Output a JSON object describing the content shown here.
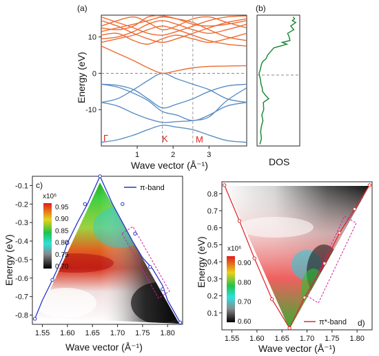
{
  "chart_data": [
    {
      "panel": "(a)",
      "type": "line",
      "xlabel": "Wave vector (Å⁻¹)",
      "ylabel": "Energy (eV)",
      "xlim": [
        0,
        4.05
      ],
      "ylim": [
        -20,
        16
      ],
      "xticks": [
        1,
        2,
        3
      ],
      "yticks": [
        -10,
        0,
        10
      ],
      "kpoints": [
        {
          "label": "Γ",
          "x": 0
        },
        {
          "label": "K",
          "x": 1.7
        },
        {
          "label": "M",
          "x": 2.55
        }
      ],
      "series": [
        {
          "group": "valence",
          "x": [
            0,
            0.45,
            0.9,
            1.3,
            1.7,
            2.1,
            2.55,
            3.0,
            3.5,
            4.05
          ],
          "values": [
            -3.0,
            -3.3,
            -4.5,
            -7.0,
            -9.5,
            -8.5,
            -7.0,
            -5.0,
            -3.5,
            -3.0
          ]
        },
        {
          "group": "valence",
          "x": [
            0,
            0.45,
            0.9,
            1.3,
            1.7,
            2.1,
            2.55,
            3.0,
            3.5,
            4.05
          ],
          "values": [
            -3.0,
            -3.8,
            -5.5,
            -7.5,
            -10.5,
            -11.5,
            -13.0,
            -11.5,
            -9.0,
            -8.0
          ]
        },
        {
          "group": "valence",
          "x": [
            0,
            0.45,
            0.9,
            1.3,
            1.7,
            2.1,
            2.55,
            3.0,
            3.5,
            4.05
          ],
          "values": [
            -8.0,
            -7.0,
            -4.5,
            -2.0,
            0,
            -1.5,
            -3.0,
            -4.5,
            -7.0,
            -8.0
          ]
        },
        {
          "group": "valence",
          "x": [
            0,
            0.45,
            0.9,
            1.3,
            1.7,
            2.1,
            2.55,
            3.0,
            3.5,
            4.05
          ],
          "values": [
            -8.0,
            -9.0,
            -11.0,
            -12.5,
            -13.5,
            -13.3,
            -13.0,
            -12.0,
            -7.5,
            -4.0
          ]
        },
        {
          "group": "valence",
          "x": [
            0,
            0.45,
            0.9,
            1.3,
            1.7,
            2.1,
            2.55,
            3.0,
            3.5,
            4.05
          ],
          "values": [
            -19.0,
            -18.3,
            -17.0,
            -15.5,
            -14.3,
            -14.8,
            -15.5,
            -17.0,
            -18.5,
            -19.0
          ]
        },
        {
          "group": "conduction",
          "x": [
            0,
            0.45,
            0.9,
            1.3,
            1.7,
            2.1,
            2.55,
            3.0,
            3.5,
            4.05
          ],
          "values": [
            7.5,
            5.5,
            3.5,
            1.5,
            0,
            0.7,
            1.5,
            1.9,
            2.0,
            2.1
          ]
        },
        {
          "group": "conduction",
          "x": [
            0,
            0.45,
            0.9,
            1.3,
            1.7,
            2.1,
            2.55,
            3.0,
            3.5,
            4.05
          ],
          "values": [
            14.5,
            13.0,
            11.0,
            9.5,
            8.5,
            9.5,
            11.0,
            12.5,
            14.0,
            15.0
          ]
        },
        {
          "group": "conduction",
          "x": [
            0,
            0.45,
            0.9,
            1.3,
            1.7,
            2.1,
            2.55,
            3.0,
            3.5,
            4.05
          ],
          "values": [
            11.5,
            12.5,
            13.5,
            14.5,
            15.5,
            15.0,
            14.0,
            12.0,
            10.0,
            9.0
          ]
        },
        {
          "group": "conduction",
          "x": [
            0,
            0.45,
            0.9,
            1.3,
            1.7,
            2.1,
            2.55,
            3.0,
            3.5,
            4.05
          ],
          "values": [
            8.5,
            9.5,
            10.5,
            12.0,
            13.0,
            12.0,
            10.5,
            9.0,
            8.0,
            7.5
          ]
        },
        {
          "group": "conduction",
          "x": [
            0,
            0.45,
            0.9,
            1.3,
            1.7,
            2.1,
            2.55,
            3.0,
            3.5,
            4.05
          ],
          "values": [
            15.5,
            14.0,
            12.5,
            11.0,
            10.5,
            11.5,
            13.0,
            14.5,
            15.5,
            15.8
          ]
        },
        {
          "group": "conduction",
          "x": [
            0,
            0.45,
            0.9,
            1.3,
            1.7,
            2.1,
            2.55,
            3.0,
            3.5,
            4.05
          ],
          "values": [
            9.5,
            10.0,
            11.5,
            13.5,
            14.5,
            13.5,
            12.0,
            11.0,
            12.0,
            13.5
          ]
        },
        {
          "group": "conduction",
          "x": [
            0,
            0.45,
            0.9,
            1.3,
            1.7,
            2.1,
            2.55,
            3.0,
            3.5,
            4.05
          ],
          "values": [
            13.0,
            14.5,
            15.5,
            14.0,
            12.0,
            13.0,
            15.0,
            15.5,
            14.0,
            12.5
          ]
        },
        {
          "group": "conduction",
          "x": [
            0,
            0.45,
            0.9,
            1.3,
            1.7,
            2.1,
            2.55,
            3.0,
            3.5,
            4.05
          ],
          "values": [
            10.5,
            11.0,
            9.0,
            8.0,
            9.5,
            10.5,
            9.5,
            8.5,
            9.5,
            11.0
          ]
        },
        {
          "group": "conduction",
          "x": [
            0,
            0.45,
            0.9,
            1.3,
            1.7,
            2.1,
            2.55,
            3.0,
            3.5,
            4.05
          ],
          "values": [
            12.5,
            12.0,
            13.0,
            15.5,
            15.8,
            15.0,
            13.5,
            13.0,
            13.5,
            14.5
          ]
        }
      ],
      "colors": {
        "valence": "#5b8ec6",
        "conduction": "#ee6a30"
      }
    },
    {
      "panel": "(b)",
      "type": "line",
      "xlabel": "DOS",
      "ylim": [
        -20,
        16
      ],
      "color": "#1e8a3c",
      "y": [
        -19.5,
        -18,
        -16,
        -14.5,
        -13,
        -11.5,
        -10,
        -8,
        -7,
        -6,
        -5,
        -4,
        -3,
        -2,
        -1,
        0,
        1,
        2,
        3,
        3.5,
        4,
        5,
        6,
        7,
        7.5,
        8,
        8.5,
        9,
        10,
        11,
        12,
        13,
        14,
        14.5,
        15,
        15.5
      ],
      "values": [
        0.02,
        0.06,
        0.04,
        0.06,
        0.1,
        0.07,
        0.12,
        0.11,
        0.25,
        0.16,
        0.09,
        0.08,
        0.05,
        0.04,
        0.02,
        0.0,
        0.03,
        0.05,
        0.08,
        0.12,
        0.18,
        0.22,
        0.3,
        0.38,
        0.55,
        0.72,
        0.6,
        0.8,
        0.78,
        0.74,
        0.9,
        0.82,
        0.95,
        0.86,
        0.92,
        0.88
      ]
    },
    {
      "panel": "c)",
      "type": "heatmap",
      "xlabel": "Wave vector (Å⁻¹)",
      "ylabel": "Energy (eV)",
      "xlim": [
        1.53,
        1.83
      ],
      "ylim": [
        -0.85,
        -0.05
      ],
      "xticks": [
        1.55,
        1.6,
        1.65,
        1.7,
        1.75,
        1.8
      ],
      "yticks": [
        -0.1,
        -0.2,
        -0.3,
        -0.4,
        -0.5,
        -0.6,
        -0.7,
        -0.8
      ],
      "colorbar": {
        "exponent": "x10⁶",
        "ticks": [
          0.95,
          0.9,
          0.85,
          0.8,
          0.75,
          0.7
        ]
      },
      "legend": "π-band",
      "band_color": "#2233cc",
      "band_x": [
        1.535,
        1.55,
        1.57,
        1.59,
        1.6,
        1.62,
        1.64,
        1.665,
        1.69,
        1.71,
        1.73,
        1.75,
        1.77,
        1.79,
        1.8,
        1.825
      ],
      "band_y": [
        -0.82,
        -0.72,
        -0.61,
        -0.49,
        -0.41,
        -0.3,
        -0.2,
        -0.05,
        -0.2,
        -0.3,
        -0.4,
        -0.49,
        -0.55,
        -0.64,
        -0.72,
        -0.84
      ],
      "markers": [
        {
          "x": 1.535,
          "y": -0.82
        },
        {
          "x": 1.57,
          "y": -0.61
        },
        {
          "x": 1.6,
          "y": -0.41
        },
        {
          "x": 1.635,
          "y": -0.2
        },
        {
          "x": 1.665,
          "y": -0.05
        },
        {
          "x": 1.71,
          "y": -0.2
        },
        {
          "x": 1.735,
          "y": -0.36
        },
        {
          "x": 1.765,
          "y": -0.54
        },
        {
          "x": 1.79,
          "y": -0.66
        },
        {
          "x": 1.825,
          "y": -0.84
        }
      ],
      "highlight_box": "dashed magenta box along right edge"
    },
    {
      "panel": "d)",
      "type": "heatmap",
      "xlabel": "Wave vector (Å⁻¹)",
      "ylabel": "Energy (eV)",
      "xlim": [
        1.53,
        1.83
      ],
      "ylim": [
        0.0,
        0.87
      ],
      "xticks": [
        1.55,
        1.6,
        1.65,
        1.7,
        1.75,
        1.8
      ],
      "yticks": [
        0.1,
        0.2,
        0.3,
        0.4,
        0.5,
        0.6,
        0.7,
        0.8
      ],
      "colorbar": {
        "exponent": "x10⁶",
        "ticks": [
          0.9,
          0.8,
          0.7,
          0.6
        ]
      },
      "legend": "π*-band",
      "band_color": "#e0282c",
      "markers": [
        {
          "x": 1.535,
          "y": 0.85
        },
        {
          "x": 1.565,
          "y": 0.64
        },
        {
          "x": 1.595,
          "y": 0.42
        },
        {
          "x": 1.63,
          "y": 0.18
        },
        {
          "x": 1.665,
          "y": 0.01
        },
        {
          "x": 1.695,
          "y": 0.19
        },
        {
          "x": 1.735,
          "y": 0.39
        },
        {
          "x": 1.765,
          "y": 0.57
        },
        {
          "x": 1.795,
          "y": 0.71
        },
        {
          "x": 1.825,
          "y": 0.85
        }
      ],
      "highlight_box": "dashed magenta box along right edge"
    }
  ],
  "labels": {
    "panel_a": "(a)",
    "panel_b": "(b)",
    "panel_c": "c)",
    "panel_d": "d)",
    "a_xlabel": "Wave vector (Å⁻¹)",
    "a_ylabel": "Energy (eV)",
    "b_xlabel": "DOS",
    "c_xlabel": "Wave vector (Å⁻¹)",
    "c_ylabel": "Energy (eV)",
    "d_xlabel": "Wave vector (Å⁻¹)",
    "d_ylabel": "Energy (eV)",
    "c_legend": "π-band",
    "d_legend": "π*-band",
    "cb_exp_c": "x10⁶",
    "cb_exp_d": "x10⁶",
    "gamma": "Γ",
    "k": "K",
    "m": "M"
  }
}
